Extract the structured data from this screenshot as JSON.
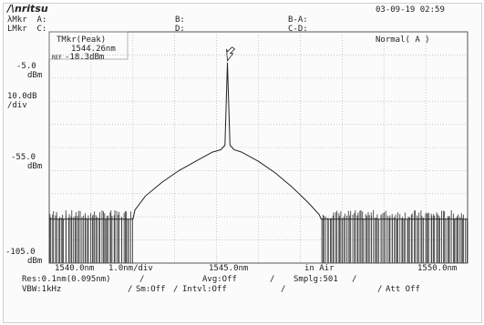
{
  "header": {
    "brand": "/\\nritsu",
    "datetime": "03-09-19 02:59",
    "row1": {
      "a_label": "λMkr  A:",
      "b_label": "B:",
      "ba_label": "B-A:"
    },
    "row2": {
      "c_label": "LMkr  C:",
      "d_label": "D:",
      "cd_label": "C-D:"
    }
  },
  "marker_box": {
    "title": "TMkr(Peak)",
    "wavelength": "1544.26nm",
    "ref_tag": "REF",
    "level": "-18.3dBm"
  },
  "mode_label": "Normal( A )",
  "y_axis": {
    "top_value": "-5.0",
    "top_unit": "dBm",
    "scale_value": "10.0dB",
    "scale_unit": "/div",
    "mid_value": "-55.0",
    "mid_unit": "dBm",
    "bottom_value": "-105.0",
    "bottom_unit": "dBm"
  },
  "x_axis": {
    "start": "1540.0nm",
    "per_div": "1.0nm/div",
    "center": "1545.0nm",
    "medium": "in Air",
    "stop": "1550.0nm"
  },
  "settings": {
    "row1": {
      "res": "Res:0.1nm(0.095nm)",
      "avg": "Avg:Off",
      "smplg": "Smplg:501"
    },
    "row2": {
      "vbw": "VBW:1kHz",
      "sm": "Sm:Off",
      "intvl": "Intvl:Off",
      "att": "Att Off"
    }
  },
  "chart_data": {
    "type": "line",
    "x_unit": "nm",
    "y_unit": "dBm",
    "xlim": [
      1540.0,
      1550.0
    ],
    "ylim": [
      -105.0,
      -5.0
    ],
    "grid": true,
    "series": [
      {
        "x": [
          1540.0,
          1542.0,
          1542.05,
          1542.3,
          1542.7,
          1543.1,
          1543.5,
          1543.9,
          1544.1,
          1544.2,
          1544.26,
          1544.32,
          1544.42,
          1544.6,
          1545.0,
          1545.4,
          1545.8,
          1546.2,
          1546.45,
          1546.5,
          1550.0
        ],
        "y": [
          -86.0,
          -86.0,
          -82.0,
          -76.0,
          -70.0,
          -65.0,
          -61.0,
          -57.0,
          -56.0,
          -54.0,
          -18.3,
          -54.0,
          -56.0,
          -57.0,
          -61.0,
          -66.0,
          -72.0,
          -79.0,
          -84.0,
          -86.0,
          -86.0
        ]
      }
    ],
    "noise_floor_dBm": -86.0,
    "noise_spikes": true,
    "peak_marker": {
      "x": 1544.26,
      "y": -18.3
    }
  }
}
